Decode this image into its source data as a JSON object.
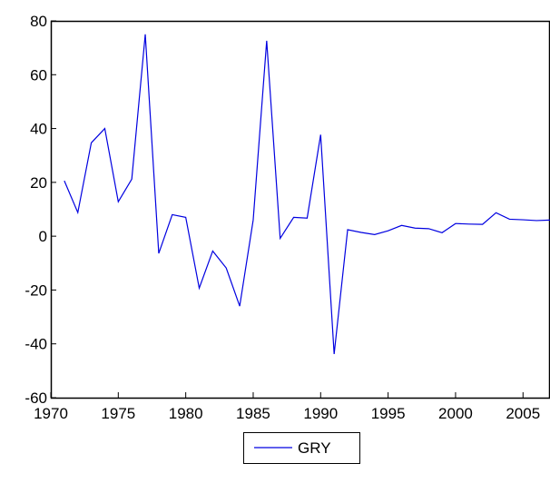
{
  "chart_data": {
    "type": "line",
    "x": [
      1971,
      1972,
      1973,
      1974,
      1975,
      1976,
      1977,
      1978,
      1979,
      1980,
      1981,
      1982,
      1983,
      1984,
      1985,
      1986,
      1987,
      1988,
      1989,
      1990,
      1991,
      1992,
      1993,
      1994,
      1995,
      1996,
      1997,
      1998,
      1999,
      2000,
      2001,
      2002,
      2003,
      2004,
      2005,
      2006,
      2007
    ],
    "series": [
      {
        "name": "GRY",
        "color": "#0000e0",
        "values": [
          20.6,
          8.8,
          34.7,
          40,
          12.8,
          21.2,
          75,
          -6.4,
          8,
          7,
          -19.3,
          -5.5,
          -11.8,
          -26,
          6,
          72.6,
          -0.8,
          7,
          6.7,
          37.7,
          -43.8,
          2.4,
          1.4,
          0.6,
          2,
          4,
          3,
          2.8,
          1.3,
          4.7,
          4.5,
          4.4,
          8.7,
          6.3,
          6.1,
          5.8,
          6
        ]
      }
    ],
    "xlim": [
      1970,
      2007
    ],
    "xticks": [
      1970,
      1975,
      1980,
      1985,
      1990,
      1995,
      2000,
      2005
    ],
    "ylim": [
      -60,
      80
    ],
    "yticks": [
      -60,
      -40,
      -20,
      0,
      20,
      40,
      60,
      80
    ],
    "legend": "bottom"
  }
}
